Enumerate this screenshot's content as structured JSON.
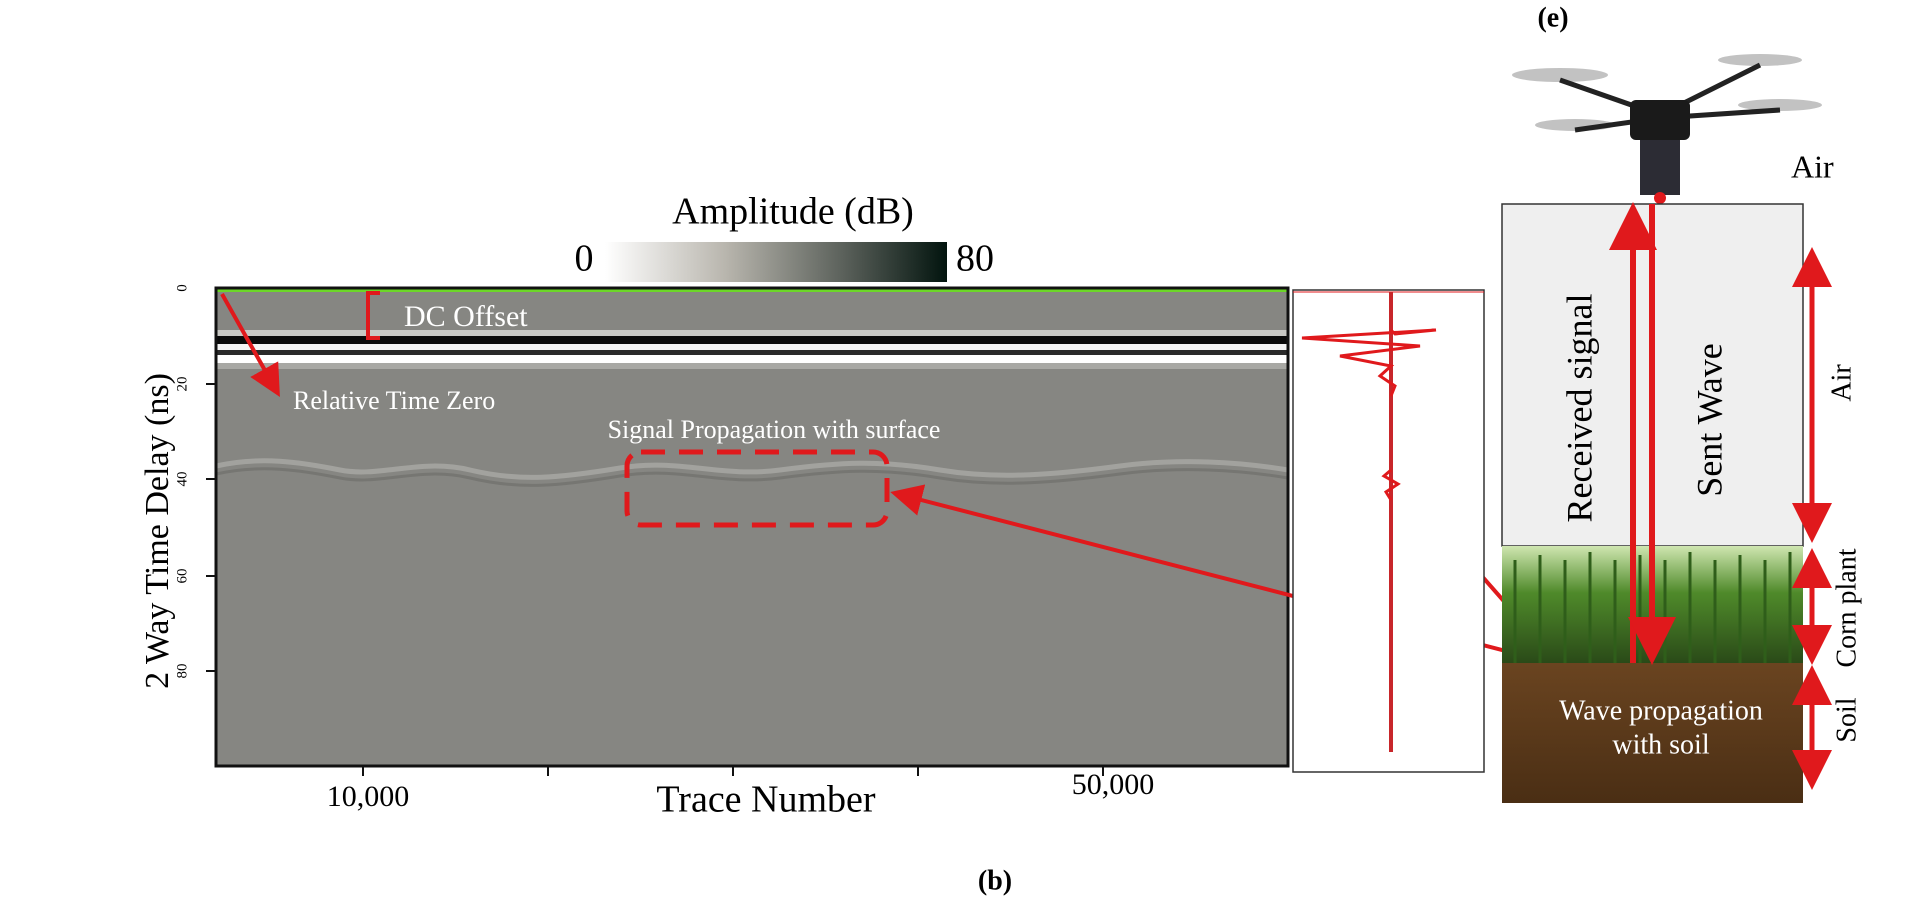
{
  "panel_b": {
    "label": "(b)",
    "colorbar": {
      "title": "Amplitude (dB)",
      "min": "0",
      "max": "80"
    },
    "y_axis": {
      "title": "2 Way Time Delay (ns)",
      "ticks": [
        "0",
        "20",
        "40",
        "60",
        "80"
      ]
    },
    "x_axis": {
      "title": "Trace Number",
      "ticks": [
        "10,000",
        "50,000"
      ]
    },
    "annotations": {
      "dc_offset": "DC Offset",
      "time_zero": "Relative Time Zero",
      "surface": "Signal Propagation with surface"
    }
  },
  "panel_e": {
    "label": "(e)",
    "drone_label": "Air",
    "received": "Received signal",
    "sent": "Sent Wave",
    "layers": {
      "air": "Air",
      "corn": "Corn plant",
      "soil": "Soil"
    },
    "soil_text": [
      "Wave propagation",
      "with soil"
    ]
  }
}
